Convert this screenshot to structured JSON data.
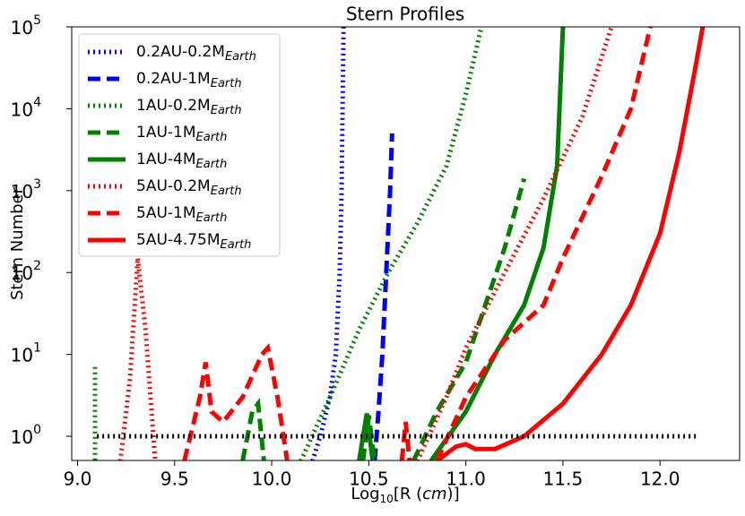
{
  "chart_data": {
    "type": "line",
    "title": "Stern Profiles",
    "x_label": {
      "parts": [
        "Log",
        "10",
        "[R (",
        "cm",
        ")]"
      ]
    },
    "y_label": "Stern Number",
    "xlim": [
      8.97,
      12.41
    ],
    "ylim": [
      0.507,
      100000
    ],
    "log_y": true,
    "legend": "upper left",
    "xticks": [
      {
        "value": 9,
        "label": "9.0"
      },
      9.5,
      {
        "value": 10,
        "label": "10.0"
      },
      10.5,
      {
        "value": 11,
        "label": "11.0"
      },
      11.5,
      {
        "value": 12,
        "label": "12.0"
      }
    ],
    "yticks": [
      {
        "value": 1,
        "label": "10",
        "exponent": "0"
      },
      {
        "value": 10,
        "label": "10",
        "exponent": "1"
      },
      {
        "value": 100,
        "label": "10",
        "exponent": "2"
      },
      {
        "value": 1000,
        "label": "10",
        "exponent": "3"
      },
      {
        "value": 10000,
        "label": "10",
        "exponent": "4"
      },
      {
        "value": 100000,
        "label": "10",
        "exponent": "5"
      }
    ],
    "series": [
      {
        "name": "0.2AU-0.2M",
        "name_sub": "Earth",
        "color": "#0000ff",
        "style": "dotted",
        "x": [
          10.21,
          10.25,
          10.3,
          10.33,
          10.35,
          10.36,
          10.37
        ],
        "values": [
          0.5,
          1,
          3,
          10,
          100,
          1000,
          100000
        ]
      },
      {
        "name": "0.2AU-1M",
        "name_sub": "Earth",
        "color": "#0000ff",
        "style": "dashed",
        "x": [
          10.53,
          10.55,
          10.57,
          10.59,
          10.61,
          10.62
        ],
        "values": [
          0.5,
          2,
          10,
          100,
          1000,
          5000
        ]
      },
      {
        "name": "1AU-0.2M",
        "name_sub": "Earth",
        "color": "#008000",
        "style": "dotted",
        "x": [
          9.09,
          9.09,
          null,
          10.15,
          10.3,
          10.45,
          10.6,
          10.75,
          10.9,
          11.0,
          11.08
        ],
        "values": [
          7,
          0.5,
          null,
          0.5,
          3,
          20,
          100,
          400,
          2000,
          15000,
          100000
        ]
      },
      {
        "name": "1AU-1M",
        "name_sub": "Earth",
        "color": "#008000",
        "style": "dashed",
        "x": [
          9.85,
          9.9,
          9.93,
          9.96,
          null,
          10.47,
          10.5,
          10.53,
          null,
          10.73,
          10.85,
          11.0,
          11.1,
          11.2,
          11.3
        ],
        "values": [
          0.5,
          2,
          2.5,
          0.5,
          null,
          0.5,
          1.8,
          0.5,
          null,
          0.5,
          2,
          8,
          40,
          200,
          1400
        ]
      },
      {
        "name": "1AU-4M",
        "name_sub": "Earth",
        "color": "#008000",
        "style": "solid",
        "x": [
          10.45,
          10.49,
          10.52,
          null,
          10.82,
          11.0,
          11.15,
          11.3,
          11.4,
          11.47,
          11.5
        ],
        "values": [
          0.5,
          1.9,
          0.5,
          null,
          0.5,
          2,
          10,
          40,
          200,
          2000,
          100000
        ]
      },
      {
        "name": "5AU-0.2M",
        "name_sub": "Earth",
        "color": "#ff0000",
        "style": "dotted",
        "x": [
          9.22,
          9.27,
          9.31,
          9.35,
          9.4,
          null,
          10.75,
          10.9,
          11.0,
          11.2,
          11.4,
          11.6,
          11.75
        ],
        "values": [
          0.5,
          5,
          150,
          20,
          0.5,
          null,
          0.5,
          3,
          12,
          100,
          800,
          8000,
          100000
        ]
      },
      {
        "name": "5AU-1M",
        "name_sub": "Earth",
        "color": "#ff0000",
        "style": "dashed",
        "x": [
          9.55,
          9.63,
          9.66,
          9.69,
          9.75,
          9.85,
          9.95,
          9.98,
          10.03,
          10.08,
          null,
          10.67,
          10.69,
          10.71,
          null,
          10.85,
          11.0,
          11.2,
          11.4,
          11.5,
          11.7,
          11.85,
          11.95
        ],
        "values": [
          0.5,
          3,
          8,
          2,
          1.5,
          3,
          10,
          12,
          3,
          0.5,
          null,
          0.5,
          1.5,
          0.5,
          null,
          0.5,
          3,
          15,
          40,
          150,
          1500,
          10000,
          100000
        ]
      },
      {
        "name": "5AU-4.75M",
        "name_sub": "Earth",
        "color": "#ff0000",
        "style": "solid",
        "x": [
          10.85,
          10.95,
          11.0,
          11.05,
          11.15,
          11.3,
          11.5,
          11.7,
          11.85,
          12.0,
          12.1,
          12.18,
          12.22
        ],
        "values": [
          0.5,
          0.75,
          0.8,
          0.7,
          0.7,
          1,
          2.5,
          10,
          40,
          300,
          3000,
          30000,
          100000
        ]
      },
      {
        "color": "#000000",
        "style": "dotted",
        "x": [
          9.1,
          12.2
        ],
        "values": [
          1,
          1
        ]
      }
    ]
  }
}
